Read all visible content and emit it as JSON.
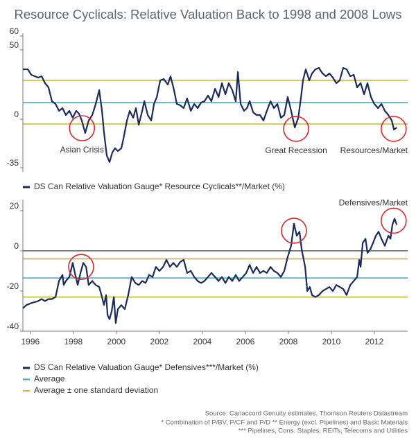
{
  "chart_data": [
    {
      "type": "line",
      "title": "Resource Cyclicals: Relative Valuation Back to 1998 and 2008 Lows",
      "xlim": [
        1995.65,
        2013.55
      ],
      "ylim": [
        -38,
        62
      ],
      "yticks": [
        -35,
        0,
        50,
        60
      ],
      "reference_lines": [
        {
          "color": "#c9b637",
          "values": [
            28,
            -3.5
          ]
        },
        {
          "color": "#3aa6b3",
          "values": [
            12
          ]
        }
      ],
      "annotations": [
        {
          "text": "Asian Crisis",
          "x": 1998.4,
          "y": -6.5
        },
        {
          "text": "Great Recession",
          "x": 2008.36,
          "y": -7
        },
        {
          "text": "Resources/Market",
          "x": 2012.9,
          "y": -7
        }
      ],
      "series": [
        {
          "name": "DS Can Relative Valuation Gauge* Resource Cyclicals**/Market (%)",
          "color": "#1b2a5c",
          "x": [
            1995.65,
            1995.88,
            1996.04,
            1996.2,
            1996.36,
            1996.52,
            1996.68,
            1996.84,
            1997.0,
            1997.17,
            1997.33,
            1997.49,
            1997.65,
            1997.81,
            1997.97,
            1998.13,
            1998.26,
            1998.39,
            1998.55,
            1998.71,
            1998.88,
            1999.04,
            1999.2,
            1999.33,
            1999.42,
            1999.55,
            1999.68,
            1999.81,
            1999.94,
            2000.07,
            2000.23,
            2000.33,
            2000.49,
            2000.62,
            2000.78,
            2000.91,
            2001.04,
            2001.2,
            2001.3,
            2001.46,
            2001.62,
            2001.75,
            2001.88,
            2002.04,
            2002.2,
            2002.39,
            2002.52,
            2002.68,
            2002.81,
            2002.97,
            2003.13,
            2003.29,
            2003.46,
            2003.62,
            2003.78,
            2003.94,
            2004.1,
            2004.26,
            2004.42,
            2004.59,
            2004.75,
            2004.91,
            2005.07,
            2005.23,
            2005.39,
            2005.55,
            2005.65,
            2005.78,
            2005.94,
            2006.07,
            2006.2,
            2006.36,
            2006.52,
            2006.68,
            2006.84,
            2007.0,
            2007.17,
            2007.33,
            2007.49,
            2007.65,
            2007.81,
            2007.97,
            2008.13,
            2008.3,
            2008.46,
            2008.59,
            2008.68,
            2008.81,
            2008.97,
            2009.1,
            2009.26,
            2009.42,
            2009.59,
            2009.75,
            2009.91,
            2010.07,
            2010.23,
            2010.39,
            2010.55,
            2010.71,
            2010.88,
            2011.04,
            2011.2,
            2011.36,
            2011.52,
            2011.68,
            2011.84,
            2012.0,
            2012.17,
            2012.33,
            2012.49,
            2012.65,
            2012.81,
            2012.91,
            2013.04
          ],
          "values": [
            36,
            36,
            32,
            31,
            30,
            31,
            26,
            23,
            13,
            11,
            6,
            8,
            3,
            6,
            1,
            6,
            4,
            -1,
            -10,
            -1,
            3,
            11,
            21,
            6,
            -9,
            -26,
            -31,
            -24,
            -21,
            -23,
            -21,
            -14,
            -1,
            6,
            1,
            8,
            -4,
            6,
            13,
            3,
            -1,
            11,
            16,
            28,
            29,
            25,
            31,
            21,
            11,
            10,
            8,
            15,
            6,
            11,
            8,
            12,
            13,
            17,
            13,
            22,
            16,
            26,
            18,
            26,
            21,
            13,
            34,
            11,
            6,
            8,
            13,
            5,
            3,
            3,
            -1,
            6,
            13,
            8,
            11,
            1,
            3,
            16,
            6,
            -6,
            1,
            16,
            28,
            36,
            28,
            33,
            36,
            37,
            33,
            31,
            33,
            30,
            26,
            28,
            37,
            36,
            31,
            32,
            23,
            26,
            18,
            26,
            16,
            11,
            8,
            11,
            6,
            3,
            -1,
            -7.5,
            -6
          ]
        }
      ]
    },
    {
      "type": "line",
      "xlim": [
        1995.65,
        2013.55
      ],
      "ylim": [
        -40,
        25.5
      ],
      "yticks": [
        -40,
        -20,
        0,
        20
      ],
      "xticks": [
        1996,
        1998,
        2000,
        2002,
        2004,
        2006,
        2008,
        2010,
        2012
      ],
      "zero_line": {
        "value": 0,
        "color": "#666666"
      },
      "reference_lines": [
        {
          "name": "Average",
          "color": "#3aa6b3",
          "values": [
            -13.5
          ]
        },
        {
          "name": "Average ± one standard deviation",
          "color": "#c9b637",
          "values": [
            -4,
            -23
          ]
        }
      ],
      "annotations": [
        {
          "x": 1998.36,
          "y": -8
        },
        {
          "x": 2008.26,
          "y": 10
        },
        {
          "text": "Defensives/Market",
          "x": 2012.9,
          "y": 15
        }
      ],
      "series": [
        {
          "name": "DS Can Relative Valuation Gauge* Defensives***/Market (%)",
          "color": "#1b2a5c",
          "x": [
            1995.65,
            1995.81,
            1996.04,
            1996.36,
            1996.52,
            1996.68,
            1996.84,
            1997.0,
            1997.17,
            1997.33,
            1997.49,
            1997.55,
            1997.65,
            1997.81,
            1997.97,
            1998.07,
            1998.2,
            1998.33,
            1998.46,
            1998.59,
            1998.71,
            1998.88,
            1999.04,
            1999.2,
            1999.33,
            1999.42,
            1999.52,
            1999.59,
            1999.68,
            1999.78,
            1999.88,
            1999.97,
            2000.07,
            2000.23,
            2000.39,
            2000.55,
            2000.71,
            2000.88,
            2001.04,
            2001.2,
            2001.36,
            2001.52,
            2001.68,
            2001.84,
            2002.0,
            2002.17,
            2002.33,
            2002.49,
            2002.65,
            2002.81,
            2002.97,
            2003.13,
            2003.29,
            2003.46,
            2003.62,
            2003.78,
            2003.94,
            2004.1,
            2004.26,
            2004.42,
            2004.59,
            2004.75,
            2004.91,
            2005.07,
            2005.23,
            2005.39,
            2005.55,
            2005.71,
            2005.88,
            2006.04,
            2006.2,
            2006.36,
            2006.52,
            2006.68,
            2006.84,
            2007.0,
            2007.17,
            2007.33,
            2007.49,
            2007.65,
            2007.81,
            2007.97,
            2008.13,
            2008.26,
            2008.39,
            2008.52,
            2008.62,
            2008.78,
            2008.88,
            2009.0,
            2009.1,
            2009.26,
            2009.42,
            2009.59,
            2009.75,
            2009.91,
            2010.07,
            2010.23,
            2010.39,
            2010.55,
            2010.71,
            2010.88,
            2011.04,
            2011.2,
            2011.3,
            2011.36,
            2011.46,
            2011.59,
            2011.68,
            2011.81,
            2011.94,
            2012.07,
            2012.2,
            2012.33,
            2012.49,
            2012.65,
            2012.75,
            2012.84,
            2012.94,
            2013.04
          ],
          "values": [
            -28.6,
            -27,
            -26,
            -25,
            -24,
            -25,
            -24,
            -24,
            -23,
            -15,
            -12,
            -17,
            -15,
            -13,
            -6,
            -11,
            -17,
            -11,
            -6,
            -8,
            -17,
            -15,
            -17,
            -18,
            -23,
            -27,
            -22,
            -32,
            -34,
            -30,
            -23,
            -36,
            -29,
            -27,
            -29,
            -22,
            -13,
            -16,
            -17,
            -15,
            -16,
            -12,
            -13,
            -8,
            -10,
            -8,
            -4.5,
            -8,
            -6,
            -8,
            -5.5,
            -4.5,
            -11,
            -10,
            -13,
            -15,
            -16,
            -15,
            -13,
            -11,
            -13,
            -15,
            -13,
            -16,
            -13,
            -15,
            -12,
            -15,
            -13,
            -11,
            -7,
            -11,
            -8,
            -11,
            -10,
            -11,
            -8,
            -10,
            -11,
            -13,
            -10,
            -3,
            2.5,
            13.5,
            7.5,
            9.5,
            0.7,
            -8,
            -20,
            -18,
            -22,
            -23,
            -22,
            -20,
            -19,
            -18,
            -20,
            -17,
            -18,
            -19,
            -22,
            -17,
            -15,
            -13,
            -4.5,
            -8,
            4,
            6,
            -1,
            0.7,
            4,
            7.5,
            9.5,
            6,
            2.5,
            7.5,
            6,
            13,
            16,
            13
          ]
        }
      ]
    }
  ],
  "footer": [
    "Source: Canaccord Genuity estimates, Thomson Reuters Datastream",
    "* Combination of P/BV, P/CF and P/D  ** Energy (excl. Pipelines) and Basic Materials",
    "*** Pipelines, Cons. Staples, REITs, Telecoms and Utilities"
  ]
}
